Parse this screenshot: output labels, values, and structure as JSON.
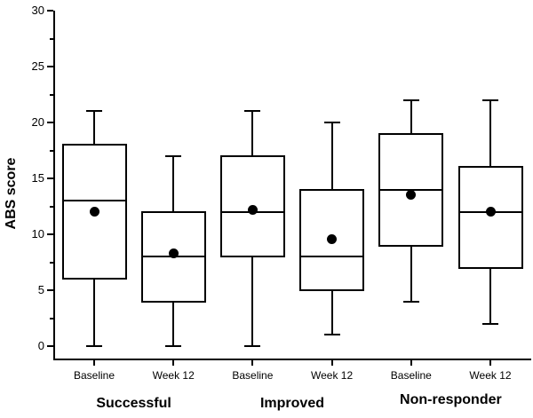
{
  "chart_data": {
    "type": "boxplot",
    "title": "",
    "ylabel": "ABS score",
    "xlabel": "",
    "ylim": [
      0,
      30
    ],
    "yticks": [
      0,
      5,
      10,
      15,
      20,
      25,
      30
    ],
    "minor_tick_interval": 2.5,
    "grid": false,
    "legend": "none",
    "colors": {
      "line": "#000000",
      "box_fill": "#ffffff",
      "mean_dot": "#000000",
      "background": "#ffffff"
    },
    "groups": [
      {
        "label": "Successful",
        "boxes": [
          {
            "label": "Baseline",
            "whisker_low": 0,
            "q1": 6,
            "median": 13,
            "q3": 18,
            "whisker_high": 21,
            "mean": 12.0
          },
          {
            "label": "Week 12",
            "whisker_low": 0,
            "q1": 4,
            "median": 8,
            "q3": 12,
            "whisker_high": 17,
            "mean": 8.3
          }
        ]
      },
      {
        "label": "Improved",
        "boxes": [
          {
            "label": "Baseline",
            "whisker_low": 0,
            "q1": 8,
            "median": 12,
            "q3": 17,
            "whisker_high": 21,
            "mean": 12.2
          },
          {
            "label": "Week 12",
            "whisker_low": 1,
            "q1": 5,
            "median": 8,
            "q3": 14,
            "whisker_high": 20,
            "mean": 9.6
          }
        ]
      },
      {
        "label": "Non-responder",
        "boxes": [
          {
            "label": "Baseline",
            "whisker_low": 4,
            "q1": 9,
            "median": 14,
            "q3": 19,
            "whisker_high": 22,
            "mean": 13.5
          },
          {
            "label": "Week 12",
            "whisker_low": 2,
            "q1": 7,
            "median": 12,
            "q3": 16,
            "whisker_high": 22,
            "mean": 12.0
          }
        ]
      }
    ]
  }
}
